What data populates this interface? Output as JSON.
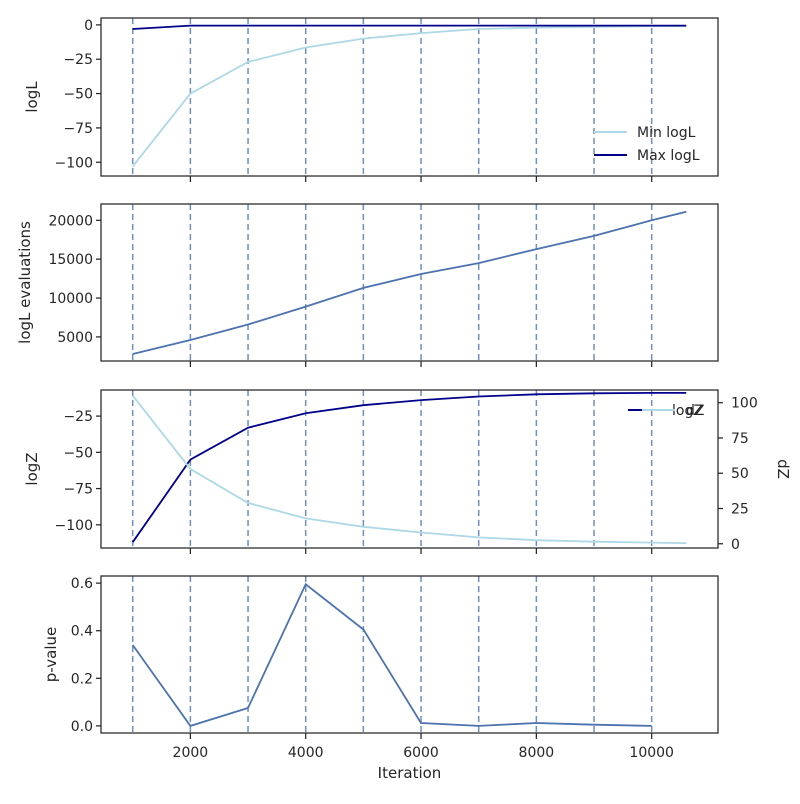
{
  "chart_data": [
    {
      "type": "line",
      "ylabel": "logL",
      "xlim": [
        450,
        11150
      ],
      "ylim": [
        -110,
        5
      ],
      "yticks": [
        0,
        -25,
        -50,
        -75,
        -100
      ],
      "ytick_labels": [
        "0",
        "−25",
        "−50",
        "−75",
        "−100"
      ],
      "vlines": [
        1000,
        2000,
        3000,
        4000,
        5000,
        6000,
        7000,
        8000,
        9000,
        10000
      ],
      "legend": {
        "placement": "lower-right"
      },
      "series": [
        {
          "name": "Min logL",
          "color": "#add8e6",
          "x": [
            1000,
            2000,
            3000,
            4000,
            5000,
            6000,
            7000,
            8000,
            9000,
            10000,
            10600
          ],
          "y": [
            -103,
            -50,
            -27,
            -16.5,
            -10,
            -6,
            -3,
            -2,
            -1.5,
            -1,
            -1
          ]
        },
        {
          "name": "Max logL",
          "color": "#00008b",
          "x": [
            1000,
            2000,
            3000,
            4000,
            5000,
            6000,
            7000,
            8000,
            9000,
            10000,
            10600
          ],
          "y": [
            -3,
            -0.5,
            -0.5,
            -0.5,
            -0.5,
            -0.5,
            -0.5,
            -0.5,
            -0.5,
            -0.5,
            -0.5
          ]
        }
      ]
    },
    {
      "type": "line",
      "ylabel": "logL evaluations",
      "xlim": [
        450,
        11150
      ],
      "ylim": [
        1900,
        22100
      ],
      "yticks": [
        5000,
        10000,
        15000,
        20000
      ],
      "ytick_labels": [
        "5000",
        "10000",
        "15000",
        "20000"
      ],
      "vlines": [
        1000,
        2000,
        3000,
        4000,
        5000,
        6000,
        7000,
        8000,
        9000,
        10000
      ],
      "series": [
        {
          "color": "#4c72b0",
          "x": [
            1000,
            2000,
            3000,
            4000,
            5000,
            6000,
            7000,
            8000,
            9000,
            10000,
            10600
          ],
          "y": [
            2800,
            4600,
            6600,
            8900,
            11300,
            13100,
            14500,
            16300,
            18000,
            20000,
            21100
          ]
        }
      ]
    },
    {
      "type": "line",
      "ylabel": "logZ",
      "ylabel_right": "dZ",
      "xlim": [
        450,
        11150
      ],
      "ylim": [
        -116,
        -7
      ],
      "yticks": [
        -25,
        -50,
        -75,
        -100
      ],
      "ytick_labels": [
        "−25",
        "−50",
        "−75",
        "−100"
      ],
      "ylim_right": [
        -3,
        109
      ],
      "yticks_right": [
        0,
        25,
        50,
        75,
        100
      ],
      "ytick_labels_right": [
        "0",
        "25",
        "50",
        "75",
        "100"
      ],
      "vlines": [
        1000,
        2000,
        3000,
        4000,
        5000,
        6000,
        7000,
        8000,
        9000,
        10000
      ],
      "legend": {
        "placement": "upper-right"
      },
      "series": [
        {
          "name": "logZ",
          "axis": "left",
          "color": "#00008b",
          "x": [
            1000,
            2000,
            3000,
            4000,
            5000,
            6000,
            7000,
            8000,
            9000,
            10000,
            10600
          ],
          "y": [
            -112,
            -55,
            -33,
            -23,
            -17.5,
            -14,
            -11.5,
            -10,
            -9.3,
            -9,
            -9
          ]
        },
        {
          "name": "dZ",
          "axis": "right",
          "color": "#add8e6",
          "x": [
            1000,
            2000,
            3000,
            4000,
            5000,
            6000,
            7000,
            8000,
            9000,
            10000,
            10600
          ],
          "y": [
            105,
            53,
            29,
            18,
            12,
            8,
            4.5,
            2.5,
            1.5,
            0.8,
            0.5
          ]
        }
      ]
    },
    {
      "type": "line",
      "ylabel": "p-value",
      "xlabel": "Iteration",
      "xlim": [
        450,
        11150
      ],
      "xticks": [
        2000,
        4000,
        6000,
        8000,
        10000
      ],
      "xtick_labels": [
        "2000",
        "4000",
        "6000",
        "8000",
        "10000"
      ],
      "ylim": [
        -0.03,
        0.63
      ],
      "yticks": [
        0.0,
        0.2,
        0.4,
        0.6
      ],
      "ytick_labels": [
        "0.0",
        "0.2",
        "0.4",
        "0.6"
      ],
      "vlines": [
        1000,
        2000,
        3000,
        4000,
        5000,
        6000,
        7000,
        8000,
        9000,
        10000
      ],
      "series": [
        {
          "color": "#4c72b0",
          "x": [
            1000,
            2000,
            3000,
            4000,
            5000,
            6000,
            7000,
            8000,
            9000,
            10000
          ],
          "y": [
            0.34,
            0.0,
            0.075,
            0.595,
            0.405,
            0.012,
            0.0,
            0.012,
            0.005,
            0.0
          ]
        }
      ]
    }
  ]
}
